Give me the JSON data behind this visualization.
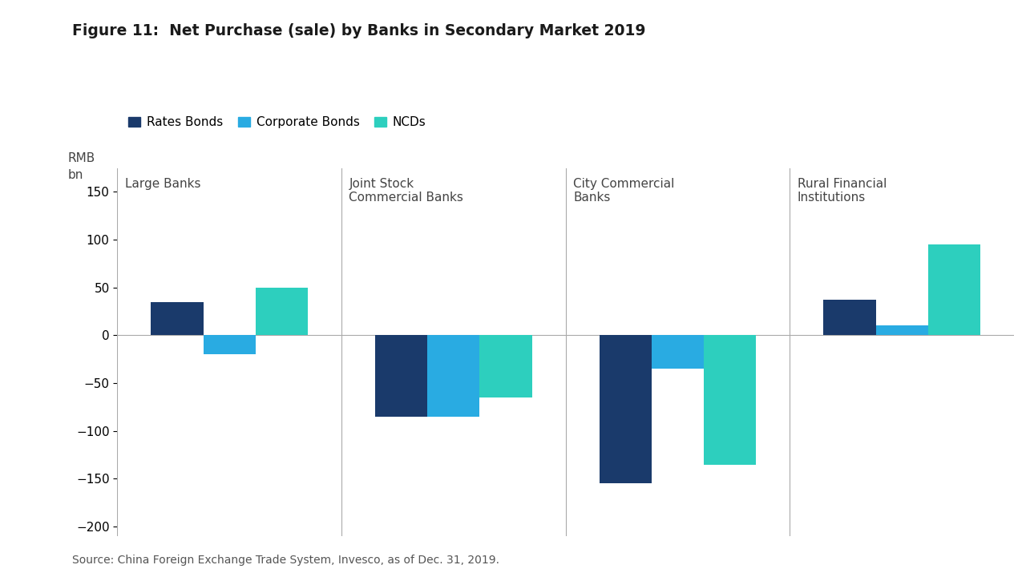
{
  "title": "Figure 11:  Net Purchase (sale) by Banks in Secondary Market 2019",
  "ylabel_line1": "RMB",
  "ylabel_line2": "bn",
  "source": "Source: China Foreign Exchange Trade System, Invesco, as of Dec. 31, 2019.",
  "groups": [
    "Large Banks",
    "Joint Stock\nCommercial Banks",
    "City Commercial\nBanks",
    "Rural Financial\nInstitutions"
  ],
  "series": [
    "Rates Bonds",
    "Corporate Bonds",
    "NCDs"
  ],
  "colors": [
    "#1a3a6b",
    "#29abe2",
    "#2dcfbe"
  ],
  "values": {
    "Rates Bonds": [
      35,
      -85,
      -155,
      37
    ],
    "Corporate Bonds": [
      -20,
      -85,
      -35,
      10
    ],
    "NCDs": [
      50,
      -65,
      -135,
      95
    ]
  },
  "ylim": [
    -210,
    175
  ],
  "yticks": [
    -200,
    -150,
    -100,
    -50,
    0,
    50,
    100,
    150
  ],
  "bar_width": 0.28,
  "group_width": 1.2,
  "background_color": "#ffffff",
  "title_fontsize": 13.5,
  "label_fontsize": 11,
  "legend_fontsize": 11,
  "tick_fontsize": 11,
  "source_fontsize": 10
}
